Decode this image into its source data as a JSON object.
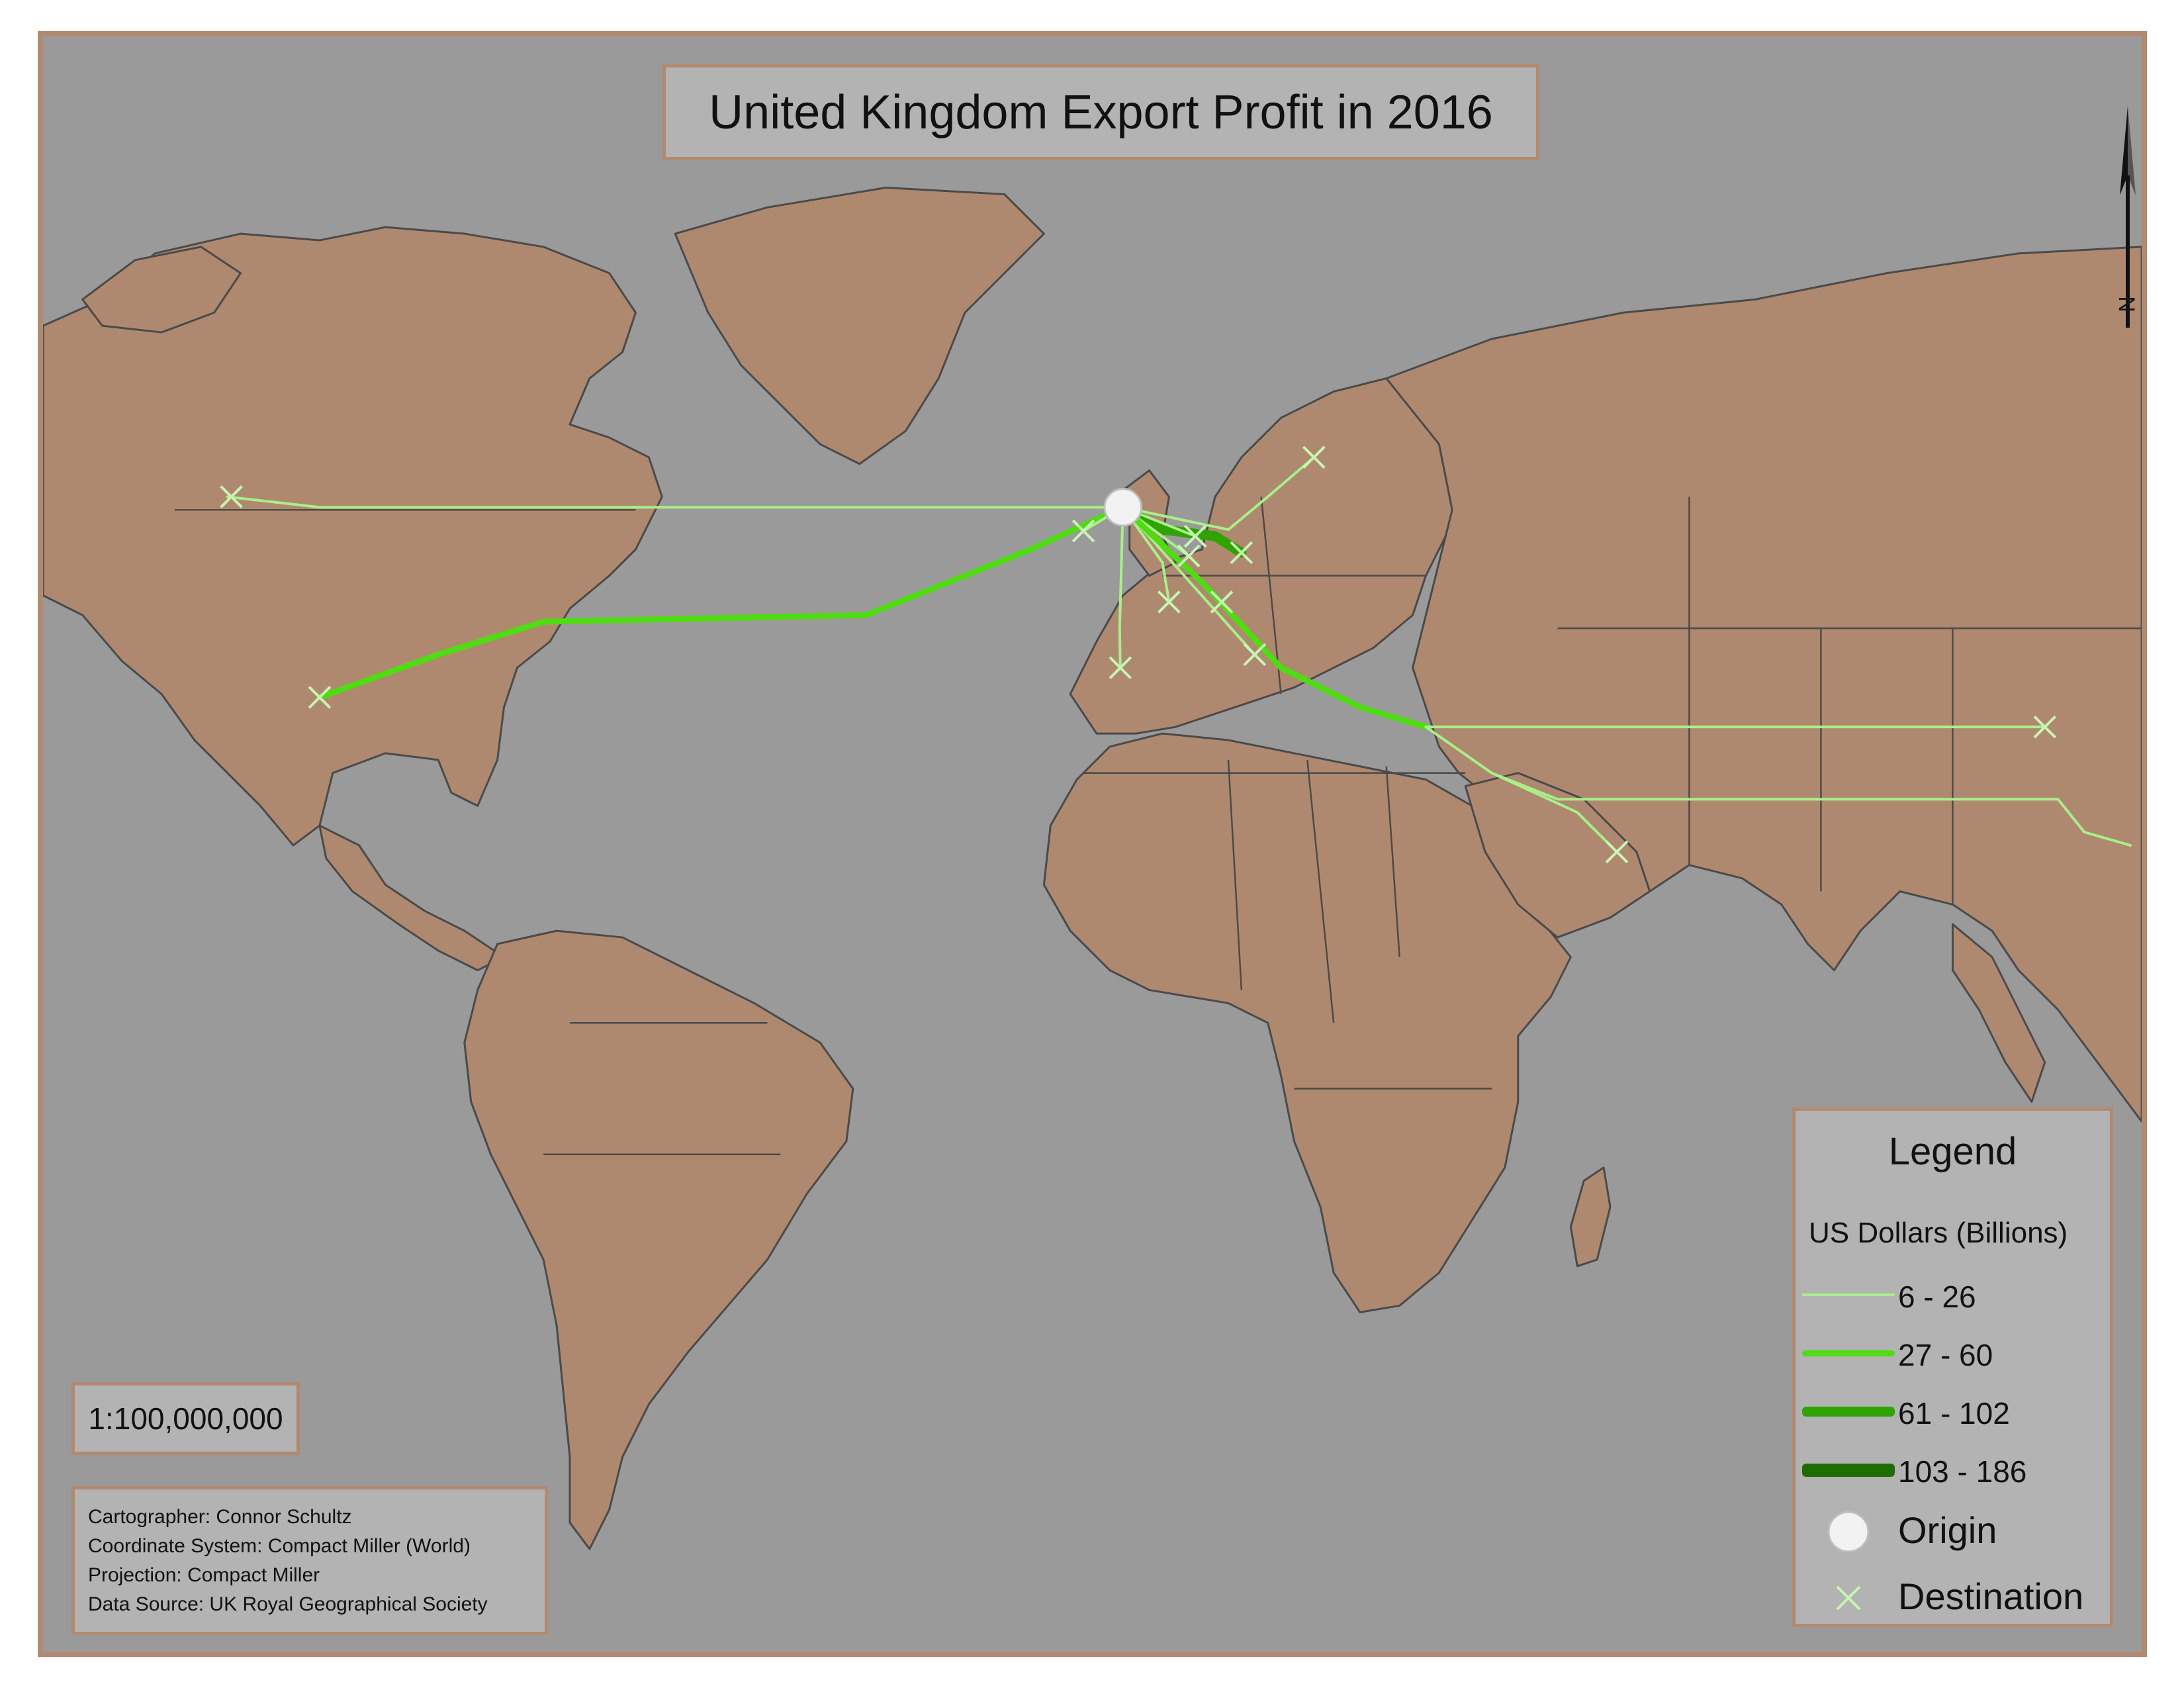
{
  "title": "United Kingdom Export Profit in 2016",
  "scale": "1:100,000,000",
  "credits": {
    "cartographer": "Cartographer: Connor Schultz",
    "coordinate_system": "Coordinate System: Compact Miller (World)",
    "projection": "Projection: Compact Miller",
    "data_source": "Data Source: UK Royal Geographical Society"
  },
  "north_label": "N",
  "legend": {
    "title": "Legend",
    "subtitle": "US Dollars (Billions)",
    "classes": [
      {
        "label": "6 - 26",
        "color": "#a8f08a"
      },
      {
        "label": "27 - 60",
        "color": "#4fdc12"
      },
      {
        "label": "61 - 102",
        "color": "#2fa300"
      },
      {
        "label": "103 - 186",
        "color": "#1e6b00"
      }
    ],
    "origin_label": "Origin",
    "destination_label": "Destination"
  },
  "colors": {
    "ocean": "#9a9a9a",
    "land": "#af896f",
    "frame": "#b28a72",
    "origin": "#f2f2f2",
    "destination": "#c8f5b4"
  }
}
